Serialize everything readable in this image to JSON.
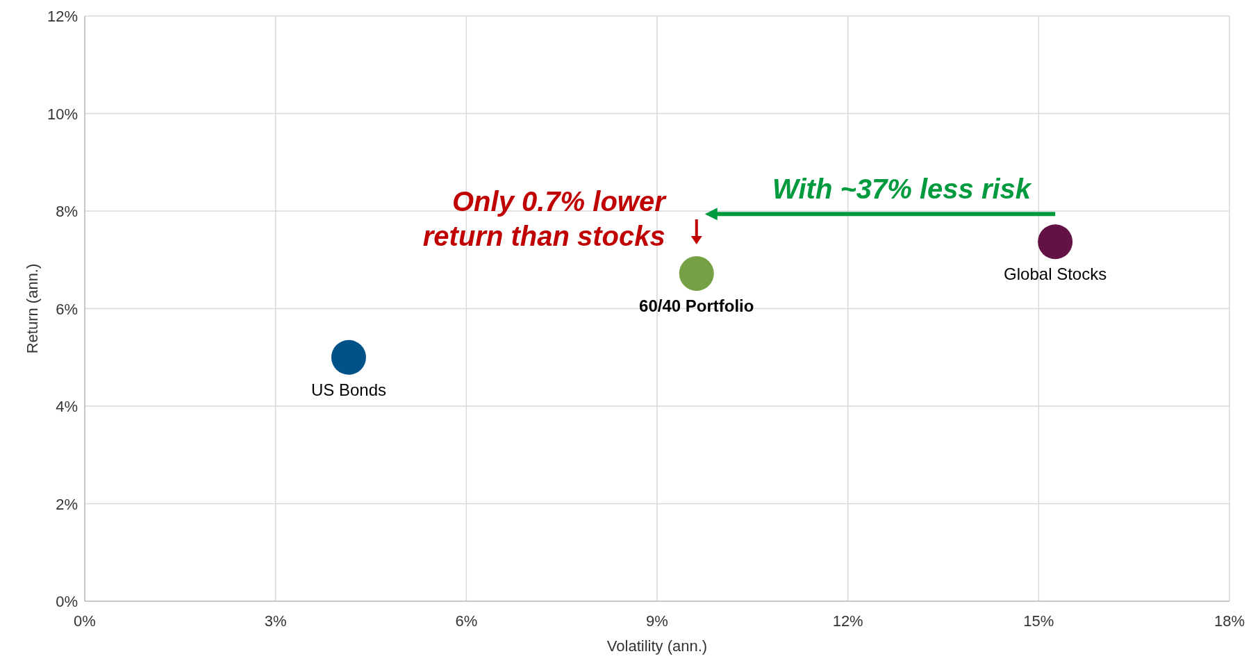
{
  "chart_data": {
    "type": "scatter",
    "xlabel": "Volatility (ann.)",
    "ylabel": "Return (ann.)",
    "xlim": [
      0,
      18
    ],
    "ylim": [
      0,
      12
    ],
    "xticks": [
      {
        "value": 0,
        "label": "0%"
      },
      {
        "value": 3,
        "label": "3%"
      },
      {
        "value": 6,
        "label": "6%"
      },
      {
        "value": 9,
        "label": "9%"
      },
      {
        "value": 12,
        "label": "12%"
      },
      {
        "value": 15,
        "label": "15%"
      },
      {
        "value": 18,
        "label": "18%"
      }
    ],
    "yticks": [
      {
        "value": 0,
        "label": "0%"
      },
      {
        "value": 2,
        "label": "2%"
      },
      {
        "value": 4,
        "label": "4%"
      },
      {
        "value": 6,
        "label": "6%"
      },
      {
        "value": 8,
        "label": "8%"
      },
      {
        "value": 10,
        "label": "10%"
      },
      {
        "value": 12,
        "label": "12%"
      }
    ],
    "grid": true,
    "marker": "circle",
    "series": [
      {
        "name": "US Bonds",
        "color": "#005288",
        "x": [
          4.15
        ],
        "values": [
          5.0
        ]
      },
      {
        "name": "60/40 Portfolio",
        "color": "#76a044",
        "x": [
          9.62
        ],
        "values": [
          6.72
        ]
      },
      {
        "name": "Global Stocks",
        "color": "#621244",
        "x": [
          15.26
        ],
        "values": [
          7.37
        ]
      }
    ],
    "annotations": [
      "Only 0.7% lower\nreturn than stocks",
      "With ~37% less risk"
    ]
  }
}
